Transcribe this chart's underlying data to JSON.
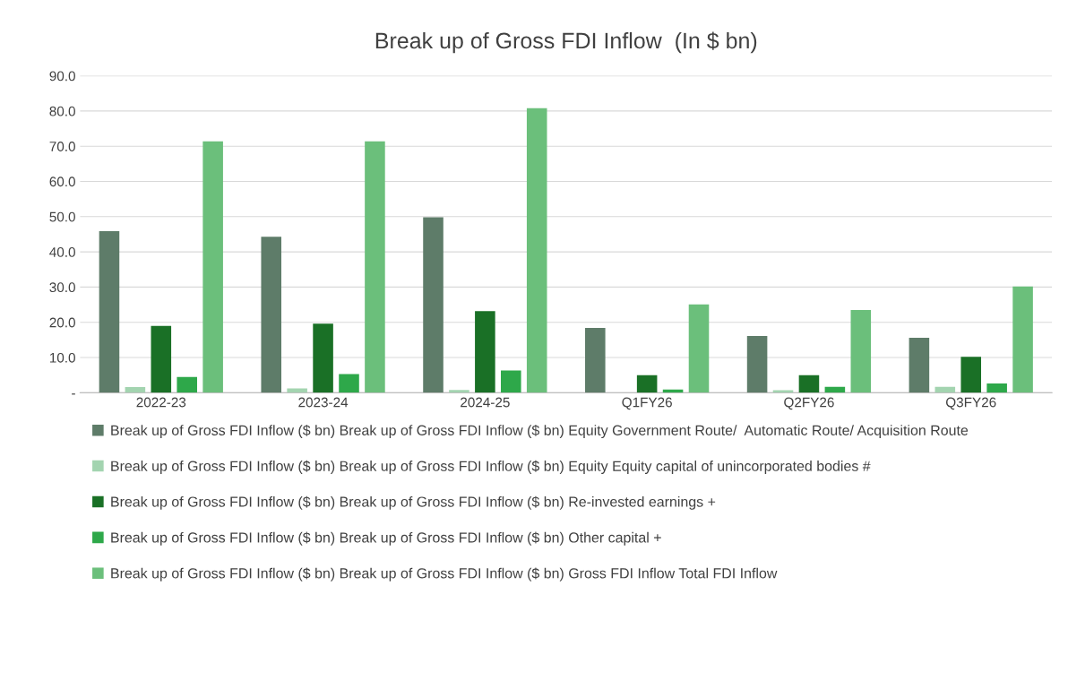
{
  "chart_data": {
    "type": "bar",
    "title": "Break up of Gross FDI Inflow  (In $ bn)",
    "categories": [
      "2022-23",
      "2023-24",
      "2024-25",
      "Q1FY26",
      "Q2FY26",
      "Q3FY26"
    ],
    "series": [
      {
        "name": "Break up of Gross FDI Inflow ($ bn) Break up of Gross FDI Inflow ($ bn) Equity Government Route/  Automatic Route/ Acquisition Route",
        "color": "#5e7c69",
        "values": [
          45.9,
          44.3,
          49.8,
          18.4,
          16.1,
          15.6
        ]
      },
      {
        "name": "Break up of Gross FDI Inflow ($ bn) Break up of Gross FDI Inflow ($ bn) Equity Equity capital of unincorporated bodies #",
        "color": "#a3d4b0",
        "values": [
          1.6,
          1.2,
          0.8,
          0,
          0.7,
          1.7
        ]
      },
      {
        "name": "Break up of Gross FDI Inflow ($ bn) Break up of Gross FDI Inflow ($ bn) Re-invested earnings +",
        "color": "#1a7026",
        "values": [
          19.0,
          19.6,
          23.2,
          5.0,
          5.0,
          10.2
        ]
      },
      {
        "name": "Break up of Gross FDI Inflow ($ bn) Break up of Gross FDI Inflow ($ bn) Other capital +",
        "color": "#2ea84a",
        "values": [
          4.5,
          5.3,
          6.3,
          0.9,
          1.7,
          2.6
        ]
      },
      {
        "name": "Break up of Gross FDI Inflow ($ bn) Break up of Gross FDI Inflow ($ bn) Gross FDI Inflow Total FDI Inflow",
        "color": "#6bbf7b",
        "values": [
          71.4,
          71.4,
          80.8,
          25.1,
          23.5,
          30.2
        ]
      }
    ],
    "ylim": [
      0,
      90
    ],
    "yticks": [
      {
        "value": 0,
        "label": "-"
      },
      {
        "value": 10,
        "label": "10.0"
      },
      {
        "value": 20,
        "label": "20.0"
      },
      {
        "value": 30,
        "label": "30.0"
      },
      {
        "value": 40,
        "label": "40.0"
      },
      {
        "value": 50,
        "label": "50.0"
      },
      {
        "value": 60,
        "label": "60.0"
      },
      {
        "value": 70,
        "label": "70.0"
      },
      {
        "value": 80,
        "label": "80.0"
      },
      {
        "value": 90,
        "label": "90.0"
      }
    ],
    "grid": "y",
    "legend": "bottom"
  }
}
